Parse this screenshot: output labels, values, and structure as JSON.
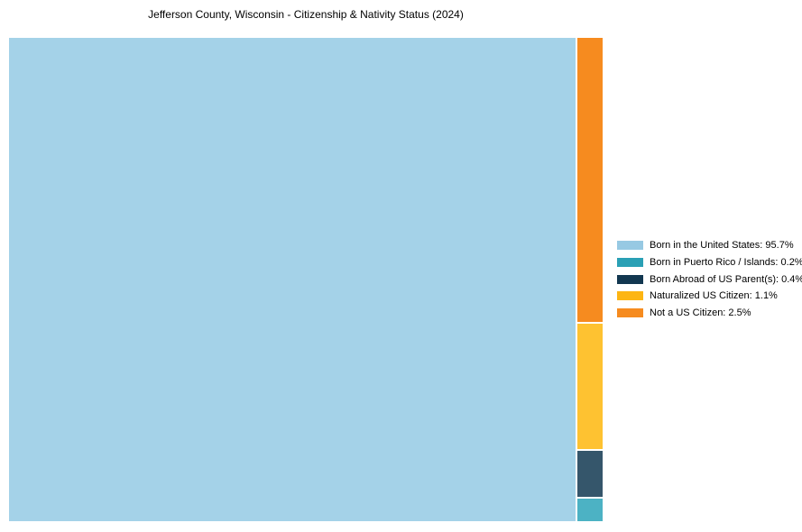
{
  "chart_data": {
    "type": "treemap",
    "title": "Jefferson County, Wisconsin - Citizenship & Nativity Status (2024)",
    "unit": "%",
    "legend_position": "right",
    "layout_hint": "largest category fills left block; remaining categories stacked in a narrow right column, largest at top",
    "items": [
      {
        "label": "Born in the United States",
        "value": 95.7,
        "legend_text": "Born in the United States: 95.7%",
        "fill": "#a4d2e8",
        "swatch": "#97c9e3"
      },
      {
        "label": "Born in Puerto Rico / Islands",
        "value": 0.2,
        "legend_text": "Born in Puerto Rico / Islands: 0.2%",
        "fill": "#4cb2c4",
        "swatch": "#2aa0b5"
      },
      {
        "label": "Born Abroad of US Parent(s)",
        "value": 0.4,
        "legend_text": "Born Abroad of US Parent(s): 0.4%",
        "fill": "#35566b",
        "swatch": "#123750"
      },
      {
        "label": "Naturalized US Citizen",
        "value": 1.1,
        "legend_text": "Naturalized US Citizen: 1.1%",
        "fill": "#fec231",
        "swatch": "#fdb513"
      },
      {
        "label": "Not a US Citizen",
        "value": 2.5,
        "legend_text": "Not a US Citizen: 2.5%",
        "fill": "#f68b1f",
        "swatch": "#f68b1f"
      }
    ]
  }
}
